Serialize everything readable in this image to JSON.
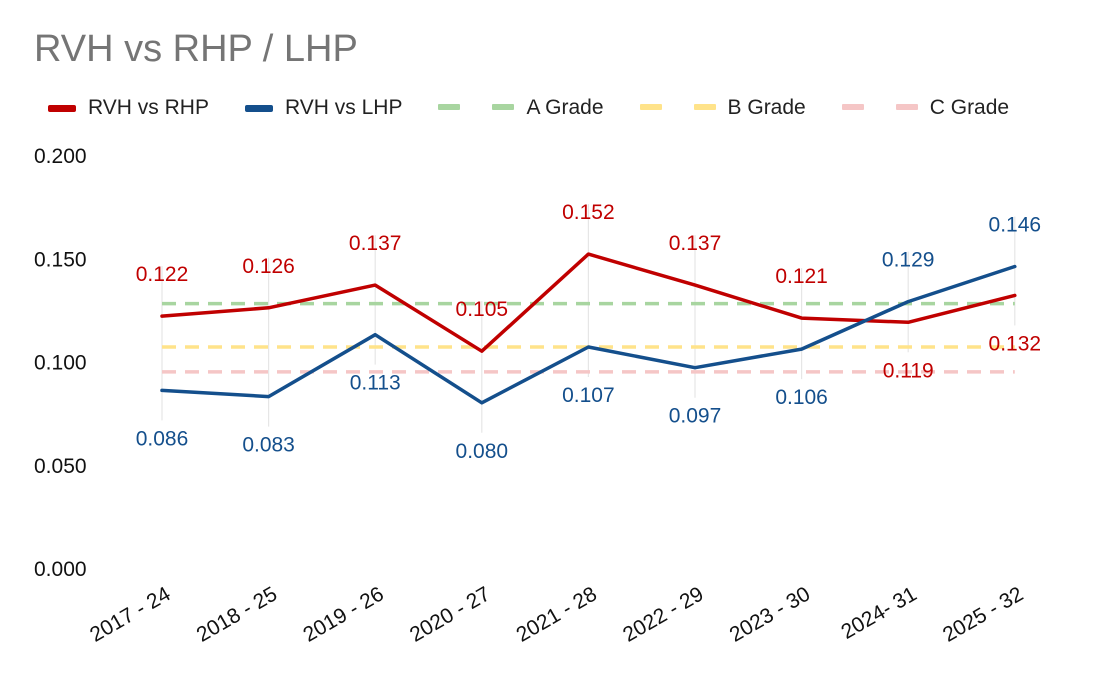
{
  "title": "RVH vs RHP / LHP",
  "legend": [
    {
      "name": "RVH vs RHP",
      "color": "#c00000",
      "style": "solid"
    },
    {
      "name": "RVH vs LHP",
      "color": "#144f8c",
      "style": "solid"
    },
    {
      "name": "A Grade",
      "color": "#a8d5a0",
      "style": "dashed"
    },
    {
      "name": "B Grade",
      "color": "#ffe38a",
      "style": "dashed"
    },
    {
      "name": "C Grade",
      "color": "#f5c6c6",
      "style": "dashed"
    }
  ],
  "chart_data": {
    "type": "line",
    "title": "RVH vs RHP / LHP",
    "categories": [
      "2017 - 24",
      "2018 - 25",
      "2019 - 26",
      "2020 - 27",
      "2021 - 28",
      "2022 - 29",
      "2023 - 30",
      "2024- 31",
      "2025 - 32"
    ],
    "series": [
      {
        "name": "RVH vs RHP",
        "color": "#c00000",
        "values": [
          0.122,
          0.126,
          0.137,
          0.105,
          0.152,
          0.137,
          0.121,
          0.119,
          0.132
        ],
        "labels": [
          "0.122",
          "0.126",
          "0.137",
          "0.105",
          "0.152",
          "0.137",
          "0.121",
          "0.119",
          "0.132"
        ]
      },
      {
        "name": "RVH vs LHP",
        "color": "#144f8c",
        "values": [
          0.086,
          0.083,
          0.113,
          0.08,
          0.107,
          0.097,
          0.106,
          0.129,
          0.146
        ],
        "labels": [
          "0.086",
          "0.083",
          "0.113",
          "0.080",
          "0.107",
          "0.097",
          "0.106",
          "0.129",
          "0.146"
        ]
      }
    ],
    "reference_lines": [
      {
        "name": "A Grade",
        "value": 0.128,
        "color": "#a8d5a0"
      },
      {
        "name": "B Grade",
        "value": 0.107,
        "color": "#ffe38a"
      },
      {
        "name": "C Grade",
        "value": 0.095,
        "color": "#f5c6c6"
      }
    ],
    "yticks": [
      "0.000",
      "0.050",
      "0.100",
      "0.150",
      "0.200"
    ],
    "ylim": [
      0,
      0.2
    ],
    "xlabel": "",
    "ylabel": "",
    "grid": false,
    "legend_position": "top"
  }
}
